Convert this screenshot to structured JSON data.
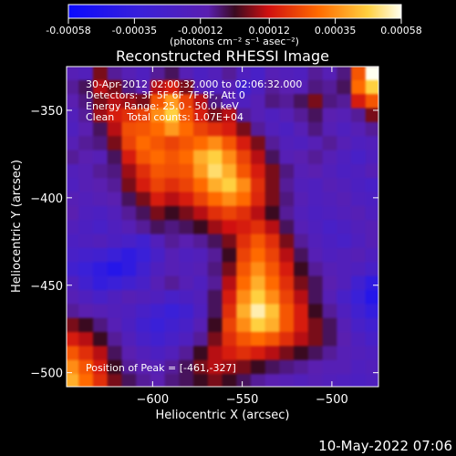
{
  "colorbar": {
    "ticks": [
      {
        "value": -0.00058,
        "label": "-0.00058"
      },
      {
        "value": -0.00035,
        "label": "-0.00035"
      },
      {
        "value": -0.00012,
        "label": "-0.00012"
      },
      {
        "value": 0.00012,
        "label": "0.00012"
      },
      {
        "value": 0.00035,
        "label": "0.00035"
      },
      {
        "value": 0.00058,
        "label": "0.00058"
      }
    ],
    "range": [
      -0.00058,
      0.00058
    ],
    "unit": "(photons cm⁻² s⁻¹ asec⁻²)"
  },
  "annotations": {
    "time_range": "30-Apr-2012 02:00:32.000 to 02:06:32.000",
    "detectors": "Detectors: 3F 5F 6F 7F 8F, Att 0",
    "energy": "Energy Range: 25.0 - 50.0 keV",
    "clean": "Clean    Total counts: 1.07E+04",
    "peak": "Position of Peak = [-461,-327]"
  },
  "timestamp": "10-May-2022 07:06",
  "colors": {
    "background": "#000000",
    "foreground": "#ffffff",
    "dark_purple": "#5a1fb0",
    "blue": "#2a3cff",
    "red": "#e31010",
    "orange": "#ff7a00",
    "yellow": "#ffe67a"
  },
  "chart_data": {
    "type": "heatmap",
    "title": "Reconstructed RHESSI Image",
    "xlabel": "Heliocentric X (arcsec)",
    "ylabel": "Heliocentric Y (arcsec)",
    "xlim": [
      -648,
      -474
    ],
    "ylim": [
      -508,
      -325
    ],
    "x_ticks": [
      {
        "value": -600,
        "label": "−600"
      },
      {
        "value": -550,
        "label": "−550"
      },
      {
        "value": -500,
        "label": "−500"
      }
    ],
    "y_ticks": [
      {
        "value": -350,
        "label": "−350"
      },
      {
        "value": -400,
        "label": "−400"
      },
      {
        "value": -450,
        "label": "−450"
      },
      {
        "value": -500,
        "label": "−500"
      }
    ],
    "peak_position": [
      -461,
      -327
    ],
    "x_centers": [
      -645,
      -637,
      -629,
      -621,
      -613,
      -605,
      -597,
      -589,
      -581,
      -573,
      -565,
      -557,
      -549,
      -541,
      -533,
      -525,
      -517,
      -509,
      -501,
      -493,
      -485,
      -477
    ],
    "y_centers": [
      -329,
      -337,
      -345,
      -353,
      -361,
      -369,
      -377,
      -385,
      -393,
      -401,
      -409,
      -417,
      -425,
      -433,
      -441,
      -449,
      -457,
      -465,
      -473,
      -481,
      -489,
      -497,
      -505
    ],
    "z": [
      [
        -0.00015,
        -0.00018,
        5e-05,
        -0.0001,
        -0.00015,
        -0.0002,
        -0.0001,
        -5e-05,
        -0.00015,
        -0.00022,
        -0.00018,
        -0.0001,
        -0.0002,
        -0.00025,
        -0.00015,
        -0.00018,
        -0.0002,
        -0.0001,
        -0.00015,
        -8e-05,
        0.0003,
        0.00058
      ],
      [
        -0.0001,
        -5e-05,
        0.0001,
        5e-05,
        -8e-05,
        -0.00012,
        0.0001,
        0.00015,
        5e-05,
        -0.00015,
        -0.0002,
        -0.00015,
        -0.0003,
        -0.0002,
        -0.0001,
        -0.00012,
        -0.00015,
        -8e-05,
        -0.0001,
        -5e-05,
        0.00035,
        0.0005
      ],
      [
        -0.00012,
        -8e-05,
        5e-05,
        0.0001,
        8e-05,
        5e-05,
        0.0003,
        0.00042,
        0.00025,
        0.0001,
        -8e-05,
        -0.00015,
        -0.0002,
        -0.00015,
        -8e-05,
        -0.0001,
        -5e-05,
        5e-05,
        -8e-05,
        -0.0001,
        0.00015,
        0.0003
      ],
      [
        -0.00018,
        -0.0001,
        8e-05,
        0.00015,
        0.0002,
        0.00025,
        0.0004,
        0.0005,
        0.0003,
        0.00015,
        5e-05,
        0.0001,
        -0.0001,
        -0.00015,
        -0.0002,
        -0.00015,
        -0.0001,
        -5e-05,
        -0.00012,
        -0.00015,
        -0.0001,
        5e-05
      ],
      [
        -0.0002,
        -0.00012,
        -5e-05,
        0.0001,
        0.00028,
        0.0003,
        0.00035,
        0.00042,
        0.00035,
        0.00025,
        0.0002,
        0.00015,
        5e-05,
        -0.0001,
        -0.00018,
        -0.00022,
        -0.00015,
        -8e-05,
        -0.00015,
        -0.0002,
        -0.00015,
        -0.0001
      ],
      [
        -0.00015,
        -0.0001,
        -8e-05,
        5e-05,
        0.00025,
        0.00035,
        0.0003,
        0.00025,
        0.0003,
        0.00035,
        0.0004,
        0.0003,
        0.00015,
        5e-05,
        -0.0001,
        -0.00018,
        -0.0002,
        -0.00015,
        -0.0001,
        -0.00015,
        -0.0002,
        -0.00018
      ],
      [
        -0.0001,
        -0.00012,
        -0.00015,
        -5e-05,
        0.00015,
        0.0003,
        0.00035,
        0.0003,
        0.00035,
        0.00045,
        0.0005,
        0.0004,
        0.00025,
        0.0001,
        -5e-05,
        -0.00015,
        -0.00012,
        -0.0001,
        -0.00015,
        -0.0002,
        -0.00025,
        -0.0002
      ],
      [
        -0.00018,
        -0.00015,
        -0.0001,
        -8e-05,
        8e-05,
        0.0002,
        0.0003,
        0.00028,
        0.0003,
        0.00042,
        0.00052,
        0.00045,
        0.0003,
        0.00015,
        5e-05,
        -8e-05,
        -0.00015,
        -0.00012,
        -0.00018,
        -0.00022,
        -0.0002,
        -0.00015
      ],
      [
        -0.0002,
        -0.00015,
        -0.00012,
        -0.0001,
        5e-05,
        0.00015,
        0.00025,
        0.0002,
        0.00025,
        0.00035,
        0.00045,
        0.0005,
        0.0004,
        0.0002,
        5e-05,
        -0.0001,
        -0.00018,
        -0.0002,
        -0.00015,
        -0.00018,
        -0.00022,
        -0.00025
      ],
      [
        -0.00015,
        -0.00018,
        -0.00015,
        -0.00012,
        -5e-05,
        5e-05,
        0.00015,
        0.0001,
        0.00015,
        0.00025,
        0.00035,
        0.0004,
        0.00035,
        0.00018,
        5e-05,
        -8e-05,
        -0.00015,
        -0.0002,
        -0.00018,
        -0.00015,
        -0.0002,
        -0.00022
      ],
      [
        -0.00012,
        -0.0002,
        -0.00022,
        -0.00018,
        -0.0001,
        -5e-05,
        5e-05,
        0.0,
        5e-05,
        0.0001,
        0.0002,
        0.00025,
        0.0002,
        0.0001,
        0.0,
        -0.0001,
        -0.00018,
        -0.00022,
        -0.0002,
        -0.00018,
        -0.00015,
        -0.0002
      ],
      [
        -0.00018,
        -0.00022,
        -0.00025,
        -0.0002,
        -0.00015,
        -0.0001,
        -5e-05,
        -8e-05,
        -5e-05,
        0.0,
        8e-05,
        0.00012,
        0.00015,
        0.0002,
        0.0001,
        -5e-05,
        -0.00015,
        -0.0002,
        -0.00025,
        -0.00022,
        -0.00018,
        -0.00015
      ],
      [
        -0.00022,
        -0.0002,
        -0.00018,
        -0.00022,
        -0.00025,
        -0.0003,
        -0.00018,
        -0.0001,
        -0.00012,
        -0.0001,
        -5e-05,
        5e-05,
        0.0002,
        0.0003,
        0.0002,
        5e-05,
        -0.0001,
        -0.00018,
        -0.00022,
        -0.00025,
        -0.0002,
        -0.00015
      ],
      [
        -0.00025,
        -0.00028,
        -0.0003,
        -0.00035,
        -0.0004,
        -0.00035,
        -0.00025,
        -0.00015,
        -0.0002,
        -0.00018,
        -0.0001,
        0.0,
        0.00025,
        0.00035,
        0.00025,
        0.0001,
        -5e-05,
        -0.00015,
        -0.0002,
        -0.00018,
        -0.00015,
        -0.0002
      ],
      [
        -0.0003,
        -0.00035,
        -0.0004,
        -0.00045,
        -0.0004,
        -0.0003,
        -0.0002,
        -0.00015,
        -0.00018,
        -0.00015,
        -8e-05,
        5e-05,
        0.0003,
        0.0004,
        0.0003,
        0.00015,
        0.0,
        -0.0001,
        -0.00015,
        -0.00018,
        -0.0002,
        -0.00025
      ],
      [
        -0.0002,
        -0.0003,
        -0.00038,
        -0.00035,
        -0.0003,
        -0.00025,
        -0.00015,
        -0.0001,
        -0.00015,
        -0.0002,
        -0.0001,
        0.0001,
        0.00035,
        0.00045,
        0.00035,
        0.0002,
        5e-05,
        -5e-05,
        -0.00012,
        -0.00018,
        -0.0003,
        -0.0004
      ],
      [
        -0.00015,
        -0.0002,
        -0.00025,
        -0.0002,
        -0.00015,
        -0.00018,
        -0.0002,
        -0.00025,
        -0.00022,
        -0.00018,
        -5e-05,
        0.00015,
        0.0004,
        0.0005,
        0.0004,
        0.00025,
        0.0001,
        -5e-05,
        -0.00015,
        -0.00025,
        -0.00035,
        -0.00045
      ],
      [
        -0.0001,
        -0.00012,
        -0.00015,
        -0.00018,
        -0.0002,
        -0.00025,
        -0.0003,
        -0.00035,
        -0.0003,
        -0.0002,
        -5e-05,
        0.0002,
        0.00045,
        0.00055,
        0.00048,
        0.0003,
        0.00015,
        0.0,
        -0.0001,
        -0.0002,
        -0.0003,
        -0.00038
      ],
      [
        5e-05,
        0.0,
        -8e-05,
        -0.00015,
        -0.00022,
        -0.0003,
        -0.00035,
        -0.0003,
        -0.00025,
        -0.00015,
        0.0,
        0.00025,
        0.0004,
        0.0005,
        0.00045,
        0.0003,
        0.00015,
        5e-05,
        -5e-05,
        -0.00015,
        -0.00025,
        -0.0003
      ],
      [
        0.00015,
        0.0001,
        0.0,
        -0.0001,
        -0.00018,
        -0.00025,
        -0.0003,
        -0.00025,
        -0.0002,
        -0.0001,
        5e-05,
        0.0002,
        0.0003,
        0.00035,
        0.0003,
        0.0002,
        0.0001,
        5e-05,
        -5e-05,
        -0.00012,
        -0.0002,
        -0.00025
      ],
      [
        0.0003,
        0.0002,
        0.0001,
        -5e-05,
        -0.00012,
        -0.00018,
        -0.00022,
        -0.00018,
        -0.0001,
        0.0,
        0.0001,
        0.00015,
        0.0002,
        0.00015,
        0.0001,
        5e-05,
        0.0,
        -5e-05,
        -0.0001,
        -0.00015,
        -0.00018,
        -0.0002
      ],
      [
        0.0004,
        0.0003,
        0.00015,
        0.0,
        -0.0001,
        -0.00012,
        -0.00015,
        -0.0001,
        -5e-05,
        5e-05,
        0.0001,
        8e-05,
        5e-05,
        0.0,
        -5e-05,
        -8e-05,
        -0.0001,
        -0.00012,
        -0.00015,
        -0.00015,
        -0.0002,
        -0.00018
      ],
      [
        0.00045,
        0.00035,
        0.0002,
        5e-05,
        -5e-05,
        -0.0001,
        -0.00012,
        -8e-05,
        -5e-05,
        0.0,
        5e-05,
        0.0,
        -5e-05,
        -0.0001,
        -0.00012,
        -0.00015,
        -0.00018,
        -0.00015,
        -0.00018,
        -0.0002,
        -0.00022,
        -0.0002
      ]
    ]
  }
}
